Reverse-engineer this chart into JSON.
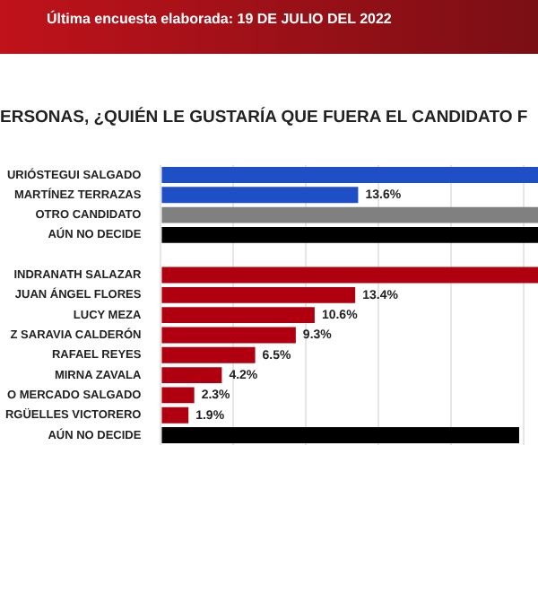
{
  "chart_data": {
    "type": "bar",
    "orientation": "horizontal",
    "subtitle": "Última encuesta elaborada: 19 DE JULIO DEL 2022",
    "title": "ERSONAS, ¿QUIÉN LE GUSTARÍA QUE FUERA EL CANDIDATO F",
    "categories": [
      "URIÓSTEGUI SALGADO",
      "MARTÍNEZ TERRAZAS",
      "OTRO CANDIDATO",
      "AÚN NO DECIDE",
      null,
      "INDRANATH SALAZAR",
      "JUAN ÁNGEL FLORES",
      "LUCY MEZA",
      "Z SARAVIA CALDERÓN",
      "RAFAEL REYES",
      "MIRNA ZAVALA",
      "O MERCADO SALGADO",
      "RGÜELLES VICTORERO",
      "AÚN NO DECIDE"
    ],
    "values": [
      26,
      13.6,
      26,
      26,
      null,
      26,
      13.4,
      10.6,
      9.3,
      6.5,
      4.2,
      2.3,
      1.9,
      24.7
    ],
    "colors": [
      "#1f4fc4",
      "#1f4fc4",
      "#808080",
      "#000000",
      null,
      "#b0000f",
      "#b0000f",
      "#b0000f",
      "#b0000f",
      "#b0000f",
      "#b0000f",
      "#b0000f",
      "#b0000f",
      "#000000"
    ],
    "value_labels": [
      null,
      "13.6%",
      null,
      null,
      null,
      null,
      "13.4%",
      "10.6%",
      "9.3%",
      "6.5%",
      "4.2%",
      "2.3%",
      "1.9%",
      null
    ],
    "xlim": [
      0,
      26
    ],
    "xticks": [
      {
        "value": 0,
        "label": null
      },
      {
        "value": 5,
        "label": null
      },
      {
        "value": 10,
        "label": null
      },
      {
        "value": 15,
        "label": null
      },
      {
        "value": 20,
        "label": null
      },
      {
        "value": 25,
        "label": null
      }
    ],
    "grid": "x",
    "tick_labels": "y",
    "legend": false
  }
}
